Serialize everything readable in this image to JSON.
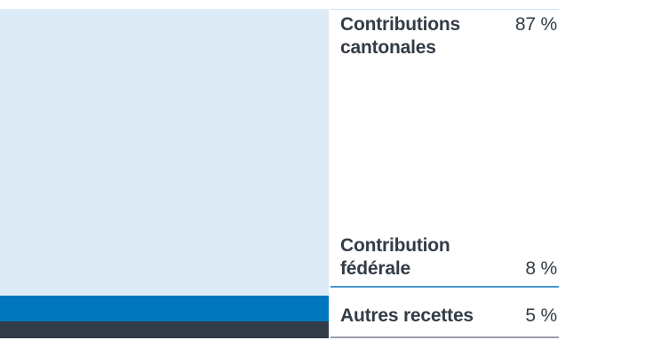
{
  "colors": {
    "background": "#ffffff",
    "text": "#333c47",
    "legend_divider_top": "#cbe2f0",
    "legend_divider_middle": "#4a95cb",
    "legend_divider_bottom": "#9aa0a6"
  },
  "chart_data": {
    "type": "bar",
    "stacked": true,
    "orientation": "vertical",
    "unit": "%",
    "total": 100,
    "legend_position": "right",
    "segments": [
      {
        "id": "contributions-cantonales",
        "label": "Contributions cantonales",
        "label_lines": [
          "Contributions",
          "cantonales"
        ],
        "value": 87,
        "value_display": "87 %",
        "color": "#dcebf5"
      },
      {
        "id": "contribution-federale",
        "label": "Contribution fédérale",
        "label_lines": [
          "Contribution",
          "fédérale"
        ],
        "value": 8,
        "value_display": "8 %",
        "color": "#0077bd"
      },
      {
        "id": "autres-recettes",
        "label": "Autres recettes",
        "label_lines": [
          "Autres recettes"
        ],
        "value": 5,
        "value_display": "5 %",
        "color": "#333c47"
      }
    ]
  }
}
